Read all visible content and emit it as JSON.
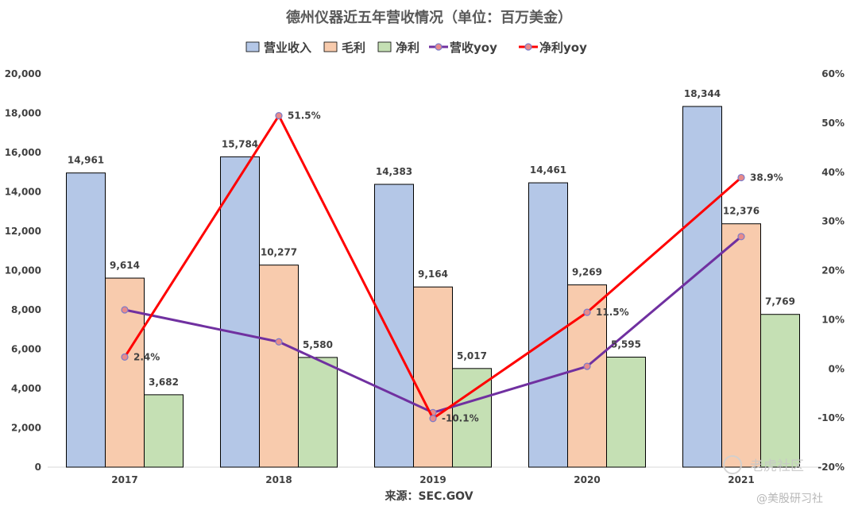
{
  "chart_data": {
    "type": "bar",
    "title": "德州仪器近五年营收情况（单位：百万美金）",
    "categories": [
      "2017",
      "2018",
      "2019",
      "2020",
      "2021"
    ],
    "series": [
      {
        "name": "营业收入",
        "type": "bar",
        "axis": "left",
        "color": "#b4c7e7",
        "values": [
          14961,
          15784,
          14383,
          14461,
          18344
        ]
      },
      {
        "name": "毛利",
        "type": "bar",
        "axis": "left",
        "color": "#f8cbad",
        "values": [
          9614,
          10277,
          9164,
          9269,
          12376
        ]
      },
      {
        "name": "净利",
        "type": "bar",
        "axis": "left",
        "color": "#c5e0b4",
        "values": [
          3682,
          5580,
          5017,
          5595,
          7769
        ]
      },
      {
        "name": "营收yoy",
        "type": "line",
        "axis": "right",
        "color": "#7030a0",
        "values": [
          12.0,
          5.5,
          -8.9,
          0.5,
          26.9
        ]
      },
      {
        "name": "净利yoy",
        "type": "line",
        "axis": "right",
        "color": "#ff0000",
        "values": [
          2.4,
          51.5,
          -10.1,
          11.5,
          38.9
        ]
      }
    ],
    "bar_labels": {
      "营业收入": [
        "14,961",
        "15,784",
        "14,383",
        "14,461",
        "18,344"
      ],
      "毛利": [
        "9,614",
        "10,277",
        "9,164",
        "9,269",
        "12,376"
      ],
      "净利": [
        "3,682",
        "5,580",
        "5,017",
        "5,595",
        "7,769"
      ]
    },
    "line_labels": {
      "净利yoy": [
        "2.4%",
        "51.5%",
        "-10.1%",
        "11.5%",
        "38.9%"
      ]
    },
    "ylim_left": [
      0,
      20000
    ],
    "ylim_right": [
      -20,
      60
    ],
    "yticks_left": [
      "0",
      "2,000",
      "4,000",
      "6,000",
      "8,000",
      "10,000",
      "12,000",
      "14,000",
      "16,000",
      "18,000",
      "20,000"
    ],
    "yticks_right": [
      "-20%",
      "-10%",
      "0%",
      "10%",
      "20%",
      "30%",
      "40%",
      "50%",
      "60%"
    ],
    "grid": false,
    "legend_position": "top",
    "source": "来源：SEC.GOV"
  },
  "watermark": {
    "brand": "老虎社区",
    "account": "@美股研习社"
  }
}
